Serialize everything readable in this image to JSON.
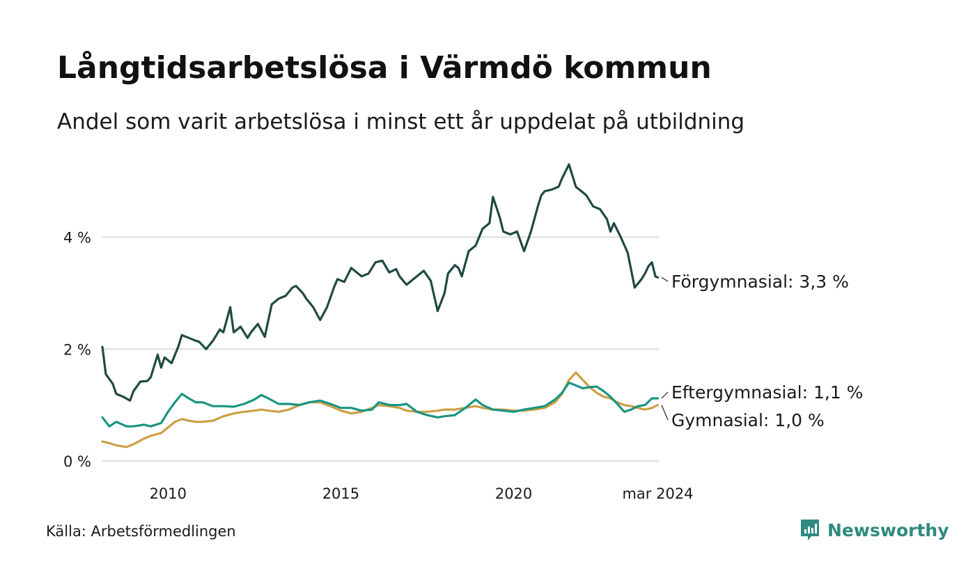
{
  "header": {
    "title": "Långtidsarbetslösa i Värmdö kommun",
    "subtitle": "Andel som varit arbetslösa i minst ett år uppdelat på utbildning"
  },
  "footer": {
    "source": "Källa: Arbetsförmedlingen",
    "brand": "Newsworthy"
  },
  "colors": {
    "forgymnasial": "#1f4a42",
    "eftergymnasial": "#1a9582",
    "gymnasial": "#cc9f45",
    "grid": "#dddddd",
    "brand": "#2f8a7f"
  },
  "chart_data": {
    "type": "line",
    "title": "Långtidsarbetslösa i Värmdö kommun",
    "xlabel": "",
    "ylabel": "",
    "ylim": [
      0,
      5.5
    ],
    "xlim": [
      2008.1,
      2024.2
    ],
    "yticks": [
      {
        "value": 0,
        "label": "0 %"
      },
      {
        "value": 2,
        "label": "2 %"
      },
      {
        "value": 4,
        "label": "4 %"
      }
    ],
    "xticks": [
      {
        "value": 2010,
        "label": "2010"
      },
      {
        "value": 2015,
        "label": "2015"
      },
      {
        "value": 2020,
        "label": "2020"
      },
      {
        "value": 2024.17,
        "label": "mar 2024"
      }
    ],
    "series": [
      {
        "name": "Förgymnasial",
        "end_label": "Förgymnasial: 3,3 %",
        "x": [
          2008.1,
          2008.2,
          2008.4,
          2008.5,
          2008.7,
          2008.9,
          2009.0,
          2009.2,
          2009.4,
          2009.5,
          2009.7,
          2009.8,
          2009.9,
          2010.1,
          2010.3,
          2010.4,
          2010.6,
          2010.8,
          2010.9,
          2011.1,
          2011.3,
          2011.5,
          2011.6,
          2011.8,
          2011.9,
          2012.1,
          2012.3,
          2012.4,
          2012.6,
          2012.8,
          2013.0,
          2013.2,
          2013.4,
          2013.6,
          2013.7,
          2013.9,
          2014.0,
          2014.2,
          2014.4,
          2014.6,
          2014.8,
          2014.9,
          2015.1,
          2015.3,
          2015.4,
          2015.6,
          2015.8,
          2016.0,
          2016.2,
          2016.4,
          2016.6,
          2016.7,
          2016.9,
          2017.1,
          2017.3,
          2017.4,
          2017.6,
          2017.8,
          2018.0,
          2018.1,
          2018.3,
          2018.4,
          2018.5,
          2018.7,
          2018.9,
          2019.1,
          2019.3,
          2019.4,
          2019.6,
          2019.7,
          2019.9,
          2020.1,
          2020.3,
          2020.5,
          2020.7,
          2020.8,
          2020.9,
          2021.1,
          2021.3,
          2021.4,
          2021.6,
          2021.8,
          2021.9,
          2022.1,
          2022.3,
          2022.5,
          2022.7,
          2022.8,
          2022.9,
          2023.1,
          2023.3,
          2023.5,
          2023.7,
          2023.8,
          2023.9,
          2024.0,
          2024.1,
          2024.17
        ],
        "values": [
          2.04,
          1.55,
          1.38,
          1.2,
          1.15,
          1.08,
          1.25,
          1.42,
          1.43,
          1.5,
          1.9,
          1.67,
          1.85,
          1.75,
          2.05,
          2.25,
          2.2,
          2.15,
          2.13,
          2.0,
          2.15,
          2.35,
          2.3,
          2.75,
          2.3,
          2.4,
          2.2,
          2.3,
          2.45,
          2.22,
          2.8,
          2.9,
          2.95,
          3.1,
          3.13,
          3.0,
          2.9,
          2.75,
          2.52,
          2.75,
          3.1,
          3.25,
          3.2,
          3.45,
          3.4,
          3.3,
          3.35,
          3.55,
          3.58,
          3.37,
          3.43,
          3.3,
          3.15,
          3.25,
          3.35,
          3.4,
          3.22,
          2.68,
          3.0,
          3.35,
          3.5,
          3.45,
          3.3,
          3.75,
          3.85,
          4.15,
          4.25,
          4.72,
          4.35,
          4.1,
          4.05,
          4.1,
          3.75,
          4.1,
          4.55,
          4.75,
          4.82,
          4.85,
          4.9,
          5.05,
          5.3,
          4.9,
          4.85,
          4.75,
          4.55,
          4.5,
          4.32,
          4.1,
          4.25,
          4.0,
          3.72,
          3.1,
          3.25,
          3.35,
          3.48,
          3.55,
          3.3,
          3.28
        ]
      },
      {
        "name": "Eftergymnasial",
        "end_label": "Eftergymnasial: 1,1 %",
        "x": [
          2008.1,
          2008.3,
          2008.5,
          2008.8,
          2009.0,
          2009.3,
          2009.5,
          2009.8,
          2010.0,
          2010.2,
          2010.4,
          2010.6,
          2010.8,
          2011.0,
          2011.3,
          2011.6,
          2011.9,
          2012.2,
          2012.5,
          2012.7,
          2012.9,
          2013.2,
          2013.5,
          2013.8,
          2014.1,
          2014.4,
          2014.7,
          2015.0,
          2015.3,
          2015.6,
          2015.9,
          2016.1,
          2016.4,
          2016.7,
          2016.9,
          2017.2,
          2017.5,
          2017.8,
          2018.0,
          2018.3,
          2018.6,
          2018.9,
          2019.1,
          2019.4,
          2019.7,
          2020.0,
          2020.3,
          2020.6,
          2020.9,
          2021.2,
          2021.4,
          2021.6,
          2021.8,
          2022.0,
          2022.2,
          2022.4,
          2022.6,
          2022.8,
          2023.0,
          2023.2,
          2023.4,
          2023.6,
          2023.8,
          2024.0,
          2024.17
        ],
        "values": [
          0.78,
          0.62,
          0.7,
          0.62,
          0.62,
          0.65,
          0.62,
          0.68,
          0.88,
          1.05,
          1.2,
          1.12,
          1.05,
          1.05,
          0.98,
          0.98,
          0.97,
          1.02,
          1.1,
          1.18,
          1.12,
          1.02,
          1.02,
          1.0,
          1.05,
          1.08,
          1.02,
          0.95,
          0.95,
          0.9,
          0.92,
          1.05,
          1.0,
          1.0,
          1.02,
          0.88,
          0.82,
          0.78,
          0.8,
          0.82,
          0.95,
          1.1,
          1.0,
          0.92,
          0.9,
          0.88,
          0.92,
          0.95,
          0.98,
          1.1,
          1.22,
          1.4,
          1.35,
          1.3,
          1.32,
          1.33,
          1.25,
          1.15,
          1.02,
          0.88,
          0.92,
          0.98,
          1.0,
          1.12,
          1.12
        ]
      },
      {
        "name": "Gymnasial",
        "end_label": "Gymnasial: 1,0 %",
        "x": [
          2008.1,
          2008.3,
          2008.5,
          2008.8,
          2009.0,
          2009.3,
          2009.5,
          2009.8,
          2010.0,
          2010.2,
          2010.4,
          2010.6,
          2010.8,
          2011.0,
          2011.3,
          2011.6,
          2011.9,
          2012.2,
          2012.5,
          2012.7,
          2012.9,
          2013.2,
          2013.5,
          2013.8,
          2014.1,
          2014.4,
          2014.7,
          2015.0,
          2015.3,
          2015.6,
          2015.9,
          2016.1,
          2016.4,
          2016.7,
          2016.9,
          2017.2,
          2017.5,
          2017.8,
          2018.0,
          2018.3,
          2018.6,
          2018.9,
          2019.1,
          2019.4,
          2019.7,
          2020.0,
          2020.3,
          2020.6,
          2020.9,
          2021.2,
          2021.4,
          2021.6,
          2021.8,
          2022.0,
          2022.2,
          2022.4,
          2022.6,
          2022.8,
          2023.0,
          2023.2,
          2023.4,
          2023.6,
          2023.8,
          2024.0,
          2024.17
        ],
        "values": [
          0.35,
          0.32,
          0.28,
          0.25,
          0.3,
          0.4,
          0.45,
          0.5,
          0.6,
          0.7,
          0.75,
          0.72,
          0.7,
          0.7,
          0.72,
          0.8,
          0.85,
          0.88,
          0.9,
          0.92,
          0.9,
          0.88,
          0.92,
          1.0,
          1.05,
          1.05,
          0.98,
          0.9,
          0.85,
          0.88,
          0.95,
          1.0,
          0.98,
          0.95,
          0.9,
          0.88,
          0.88,
          0.9,
          0.92,
          0.92,
          0.95,
          0.98,
          0.95,
          0.92,
          0.92,
          0.9,
          0.9,
          0.92,
          0.95,
          1.05,
          1.2,
          1.45,
          1.58,
          1.45,
          1.32,
          1.22,
          1.15,
          1.12,
          1.05,
          1.0,
          0.98,
          0.95,
          0.92,
          0.95,
          1.0
        ]
      }
    ]
  }
}
